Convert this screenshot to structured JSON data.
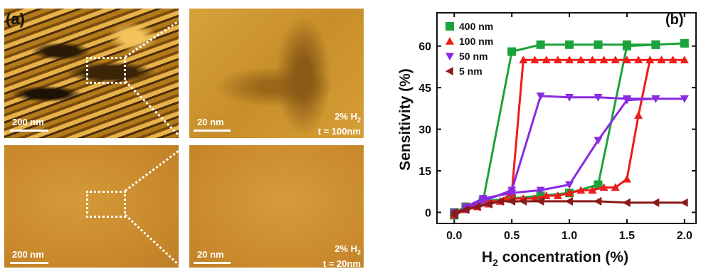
{
  "panel_a": {
    "label": "(a)",
    "scale_200": "200 nm",
    "scale_20": "20 nm",
    "cond_top_line1": "2% H",
    "cond_top_sub": "2",
    "cond_top_line2": "t = 100nm",
    "cond_bot_line1": "2% H",
    "cond_bot_sub": "2",
    "cond_bot_line2": "t = 20nm"
  },
  "chart_data": {
    "type": "line",
    "label": "(b)",
    "xlabel": "H",
    "xlabel_sub": "2",
    "xlabel_rest": " concentration (%)",
    "ylabel": "Sensitivity (%)",
    "xlim": [
      -0.15,
      2.1
    ],
    "ylim": [
      -4,
      72
    ],
    "xticks": [
      0.0,
      0.5,
      1.0,
      1.5,
      2.0
    ],
    "xtick_labels": [
      "0.0",
      "0.5",
      "1.0",
      "1.5",
      "2.0"
    ],
    "yticks": [
      0,
      15,
      30,
      45,
      60
    ],
    "ytick_labels": [
      "0",
      "15",
      "30",
      "45",
      "60"
    ],
    "legend": "top-left",
    "series": [
      {
        "name": "400 nm",
        "color": "#1aa33a",
        "marker": "square",
        "x": [
          0,
          0.1,
          0.25,
          0.5,
          0.75,
          1.0,
          1.25,
          1.5,
          1.75,
          2.0,
          1.75,
          1.5,
          1.25,
          1.0,
          0.75,
          0.5,
          0.25,
          0.1,
          0
        ],
        "y": [
          0,
          2,
          4,
          58,
          60.5,
          60.5,
          60.5,
          60.5,
          60.5,
          61,
          60.5,
          60,
          10,
          7,
          6,
          5,
          4,
          2,
          -1
        ]
      },
      {
        "name": "100 nm",
        "color": "#ee1c1c",
        "marker": "triangle-up",
        "x": [
          0,
          0.1,
          0.2,
          0.3,
          0.4,
          0.5,
          0.6,
          0.7,
          0.8,
          0.9,
          1.0,
          1.1,
          1.2,
          1.3,
          1.4,
          1.5,
          1.6,
          1.7,
          1.8,
          1.9,
          2.0,
          1.9,
          1.8,
          1.7,
          1.6,
          1.5,
          1.4,
          1.3,
          1.2,
          1.1,
          1.0,
          0.9,
          0.8,
          0.7,
          0.6,
          0.5,
          0.4,
          0.3,
          0.2,
          0.1,
          0
        ],
        "y": [
          0,
          1,
          2,
          3,
          4,
          7,
          55,
          55,
          55,
          55,
          55,
          55,
          55,
          55,
          55,
          55,
          55,
          55,
          55,
          55,
          55,
          55,
          55,
          55,
          35,
          12,
          9,
          9,
          8,
          8,
          7,
          6,
          6,
          5,
          5,
          5,
          4,
          4,
          3,
          2,
          -1
        ]
      },
      {
        "name": "50 nm",
        "color": "#8a2be2",
        "marker": "triangle-down",
        "x": [
          0,
          0.1,
          0.25,
          0.5,
          0.75,
          1.0,
          1.25,
          1.5,
          1.75,
          2.0,
          1.75,
          1.5,
          1.25,
          1.0,
          0.75,
          0.5,
          0.25,
          0.1,
          0
        ],
        "y": [
          0,
          1,
          4,
          8,
          42,
          41.5,
          41.5,
          41,
          41,
          41,
          41,
          40.5,
          26,
          10,
          8,
          7,
          5,
          2,
          -1
        ]
      },
      {
        "name": "5 nm",
        "color": "#8b1a1a",
        "marker": "triangle-left",
        "x": [
          0,
          0.1,
          0.2,
          0.3,
          0.4,
          0.5,
          0.6,
          0.75,
          1.0,
          1.25,
          1.5,
          1.75,
          2.0,
          1.75,
          1.5,
          1.25,
          1.0,
          0.75,
          0.6,
          0.5,
          0.4,
          0.3,
          0.2,
          0.1,
          0
        ],
        "y": [
          0,
          1,
          2,
          3,
          4,
          4,
          4,
          4,
          4,
          4,
          3.5,
          3.5,
          3.5,
          3.5,
          3.5,
          4,
          4,
          4,
          4,
          4,
          4,
          3,
          2,
          1,
          -1
        ]
      }
    ]
  }
}
